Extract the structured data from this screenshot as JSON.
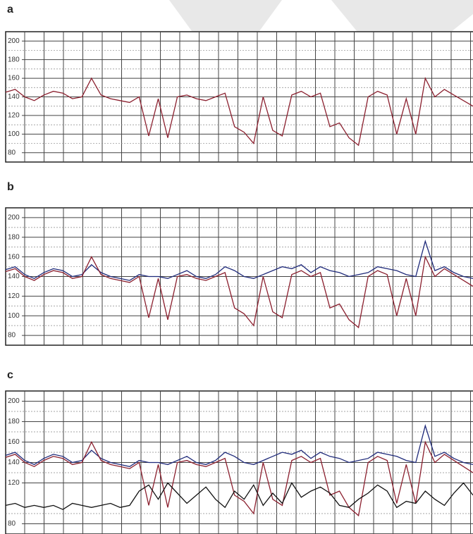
{
  "chart_data": [
    {
      "type": "line",
      "title": "a",
      "xlim": [
        0,
        49
      ],
      "ylim": [
        70,
        210
      ],
      "yticks": [
        80,
        100,
        120,
        140,
        160,
        180,
        200
      ],
      "grid": true,
      "x": [
        0,
        1,
        2,
        3,
        4,
        5,
        6,
        7,
        8,
        9,
        10,
        11,
        12,
        13,
        14,
        15,
        16,
        17,
        18,
        19,
        20,
        21,
        22,
        23,
        24,
        25,
        26,
        27,
        28,
        29,
        30,
        31,
        32,
        33,
        34,
        35,
        36,
        37,
        38,
        39,
        40,
        41,
        42,
        43,
        44,
        45,
        46,
        47,
        48,
        49
      ],
      "series": [
        {
          "color": "#8b1f2e",
          "values": [
            145,
            148,
            140,
            136,
            142,
            146,
            144,
            138,
            140,
            160,
            142,
            138,
            136,
            134,
            140,
            98,
            138,
            96,
            140,
            142,
            138,
            136,
            140,
            144,
            108,
            102,
            90,
            140,
            104,
            98,
            142,
            146,
            140,
            144,
            108,
            112,
            96,
            88,
            140,
            146,
            142,
            100,
            138,
            100,
            160,
            140,
            148,
            142,
            136,
            130
          ]
        }
      ]
    },
    {
      "type": "line",
      "title": "b",
      "xlim": [
        0,
        49
      ],
      "ylim": [
        70,
        210
      ],
      "yticks": [
        80,
        100,
        120,
        140,
        160,
        180,
        200
      ],
      "grid": true,
      "x": [
        0,
        1,
        2,
        3,
        4,
        5,
        6,
        7,
        8,
        9,
        10,
        11,
        12,
        13,
        14,
        15,
        16,
        17,
        18,
        19,
        20,
        21,
        22,
        23,
        24,
        25,
        26,
        27,
        28,
        29,
        30,
        31,
        32,
        33,
        34,
        35,
        36,
        37,
        38,
        39,
        40,
        41,
        42,
        43,
        44,
        45,
        46,
        47,
        48,
        49
      ],
      "series": [
        {
          "color": "#1f2a7a",
          "values": [
            147,
            150,
            142,
            138,
            144,
            148,
            146,
            140,
            142,
            152,
            144,
            140,
            138,
            136,
            142,
            140,
            140,
            138,
            142,
            146,
            140,
            138,
            142,
            150,
            146,
            140,
            138,
            142,
            146,
            150,
            148,
            152,
            144,
            150,
            146,
            144,
            140,
            142,
            144,
            150,
            148,
            146,
            142,
            140,
            176,
            146,
            150,
            144,
            140,
            138
          ]
        },
        {
          "color": "#8b1f2e",
          "values": [
            145,
            148,
            140,
            136,
            142,
            146,
            144,
            138,
            140,
            160,
            142,
            138,
            136,
            134,
            140,
            98,
            138,
            96,
            140,
            142,
            138,
            136,
            140,
            144,
            108,
            102,
            90,
            140,
            104,
            98,
            142,
            146,
            140,
            144,
            108,
            112,
            96,
            88,
            140,
            146,
            142,
            100,
            138,
            100,
            160,
            140,
            148,
            142,
            136,
            130
          ]
        }
      ]
    },
    {
      "type": "line",
      "title": "c",
      "xlim": [
        0,
        49
      ],
      "ylim": [
        70,
        210
      ],
      "yticks": [
        80,
        120,
        140,
        160,
        180,
        200
      ],
      "grid": true,
      "x": [
        0,
        1,
        2,
        3,
        4,
        5,
        6,
        7,
        8,
        9,
        10,
        11,
        12,
        13,
        14,
        15,
        16,
        17,
        18,
        19,
        20,
        21,
        22,
        23,
        24,
        25,
        26,
        27,
        28,
        29,
        30,
        31,
        32,
        33,
        34,
        35,
        36,
        37,
        38,
        39,
        40,
        41,
        42,
        43,
        44,
        45,
        46,
        47,
        48,
        49
      ],
      "series": [
        {
          "color": "#1f2a7a",
          "values": [
            147,
            150,
            142,
            138,
            144,
            148,
            146,
            140,
            142,
            152,
            144,
            140,
            138,
            136,
            142,
            140,
            140,
            138,
            142,
            146,
            140,
            138,
            142,
            150,
            146,
            140,
            138,
            142,
            146,
            150,
            148,
            152,
            144,
            150,
            146,
            144,
            140,
            142,
            144,
            150,
            148,
            146,
            142,
            140,
            176,
            146,
            150,
            144,
            140,
            138
          ]
        },
        {
          "color": "#8b1f2e",
          "values": [
            145,
            148,
            140,
            136,
            142,
            146,
            144,
            138,
            140,
            160,
            142,
            138,
            136,
            134,
            140,
            98,
            138,
            96,
            140,
            142,
            138,
            136,
            140,
            144,
            108,
            102,
            90,
            140,
            104,
            98,
            142,
            146,
            140,
            144,
            108,
            112,
            96,
            88,
            140,
            146,
            142,
            100,
            138,
            100,
            160,
            140,
            148,
            142,
            136,
            130
          ]
        },
        {
          "color": "#111111",
          "values": [
            98,
            100,
            96,
            98,
            96,
            98,
            94,
            100,
            98,
            96,
            98,
            100,
            96,
            98,
            112,
            118,
            104,
            120,
            110,
            100,
            108,
            116,
            104,
            96,
            112,
            104,
            118,
            98,
            110,
            100,
            120,
            106,
            112,
            116,
            110,
            98,
            96,
            104,
            110,
            118,
            112,
            96,
            102,
            100,
            112,
            104,
            98,
            110,
            120,
            108
          ]
        }
      ]
    }
  ]
}
